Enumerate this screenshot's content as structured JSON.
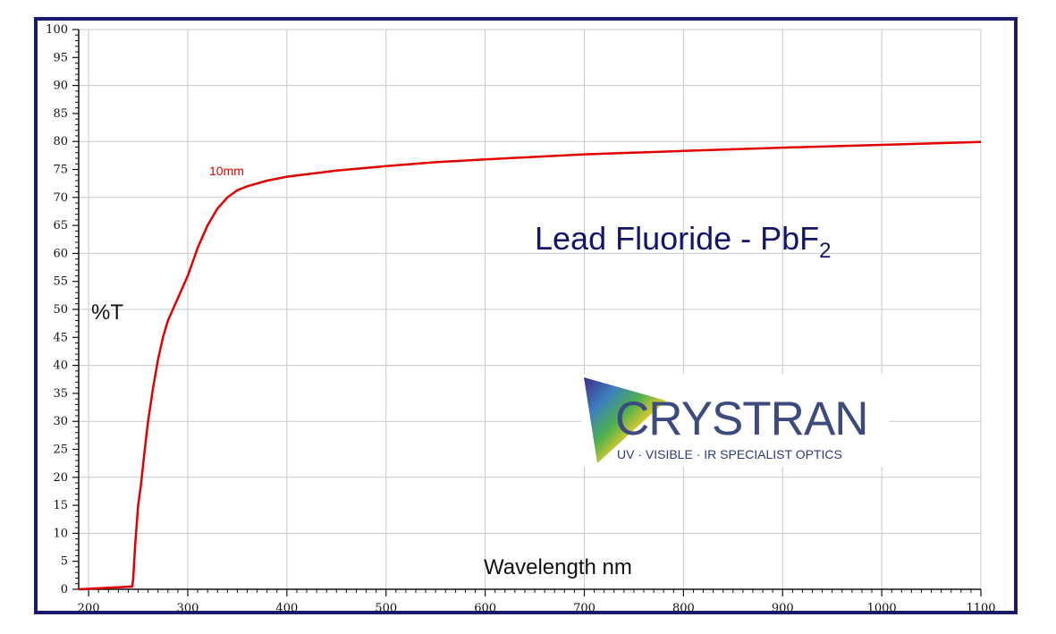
{
  "chart_data": {
    "type": "line",
    "title": "Lead Fluoride - PbF",
    "title_subscript": "2",
    "xlabel": "Wavelength nm",
    "ylabel": "%T",
    "xlim": [
      190,
      1100
    ],
    "ylim": [
      0,
      100
    ],
    "x_ticks": [
      "200",
      "300",
      "400",
      "500",
      "600",
      "700",
      "800",
      "900",
      "1000",
      "1100"
    ],
    "y_ticks": [
      "0",
      "5",
      "10",
      "15",
      "20",
      "25",
      "30",
      "35",
      "40",
      "45",
      "50",
      "55",
      "60",
      "65",
      "70",
      "75",
      "80",
      "85",
      "90",
      "95",
      "100"
    ],
    "grid": true,
    "line_color": "#e00000",
    "series": [
      {
        "name": "10mm",
        "x": [
          190,
          244,
          245,
          247,
          250,
          253,
          256,
          260,
          265,
          270,
          275,
          280,
          290,
          300,
          310,
          320,
          330,
          340,
          350,
          360,
          380,
          400,
          450,
          500,
          550,
          600,
          700,
          800,
          900,
          1000,
          1100
        ],
        "y": [
          0,
          0.5,
          2,
          8,
          15,
          19,
          24,
          30,
          36,
          41,
          45,
          48,
          52,
          56,
          61,
          65,
          68,
          70,
          71.3,
          72,
          73,
          73.7,
          74.8,
          75.6,
          76.3,
          76.8,
          77.7,
          78.3,
          78.9,
          79.4,
          79.9
        ]
      }
    ]
  },
  "logo": {
    "name": "CRYSTRAN",
    "tagline": "UV · VISIBLE · IR SPECIALIST OPTICS"
  }
}
